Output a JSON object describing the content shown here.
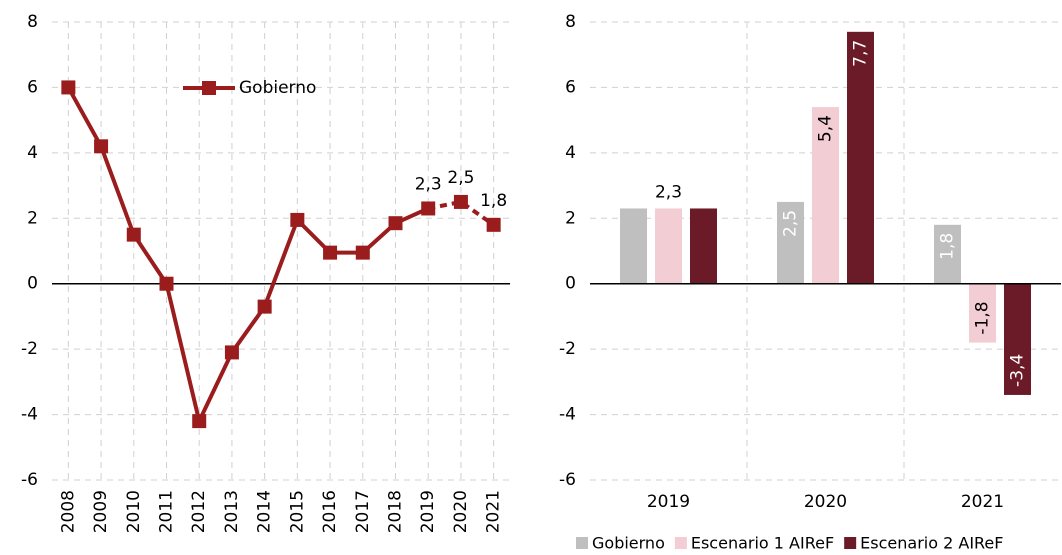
{
  "chart_data": [
    {
      "type": "line",
      "categories": [
        "2008",
        "2009",
        "2010",
        "2011",
        "2012",
        "2013",
        "2014",
        "2015",
        "2016",
        "2017",
        "2018",
        "2019",
        "2020",
        "2021"
      ],
      "series": [
        {
          "name": "Gobierno",
          "color": "#9b1c1c",
          "values": [
            6.0,
            4.2,
            1.5,
            0.0,
            -4.2,
            -2.1,
            -0.7,
            1.95,
            0.95,
            0.95,
            1.85,
            2.3,
            2.5,
            1.8
          ],
          "value_labels": [
            null,
            null,
            null,
            null,
            null,
            null,
            null,
            null,
            null,
            null,
            null,
            "2,3",
            "2,5",
            "1,8"
          ],
          "dashed_from": "2019"
        }
      ],
      "ylim": [
        -6,
        8
      ],
      "yticks": [
        -6,
        -4,
        -2,
        0,
        2,
        4,
        6,
        8
      ],
      "grid": true,
      "legend": "top"
    },
    {
      "type": "bar",
      "categories": [
        "2019",
        "2020",
        "2021"
      ],
      "series": [
        {
          "name": "Gobierno",
          "color": "#bfbfbf",
          "values": [
            2.3,
            2.5,
            1.8
          ],
          "value_labels": [
            null,
            "2,5",
            "1,8"
          ]
        },
        {
          "name": "Escenario 1 AIReF",
          "color": "#f2cdd3",
          "values": [
            2.3,
            5.4,
            -1.8
          ],
          "value_labels": [
            "2,3",
            "5,4",
            "-1,8"
          ]
        },
        {
          "name": "Escenario 2 AIReF",
          "color": "#6b1a28",
          "values": [
            2.3,
            7.7,
            -3.4
          ],
          "value_labels": [
            null,
            "7,7",
            "-3,4"
          ]
        }
      ],
      "ylim": [
        -6,
        8
      ],
      "yticks": [
        -6,
        -4,
        -2,
        0,
        2,
        4,
        6,
        8
      ],
      "grid": true,
      "legend": "bottom"
    }
  ]
}
